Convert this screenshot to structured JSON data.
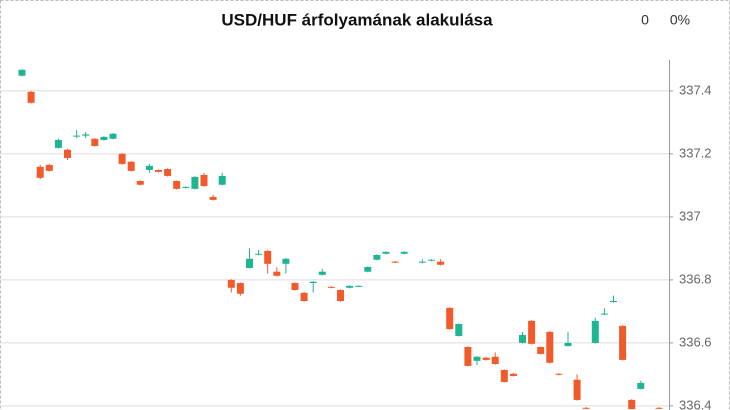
{
  "chart_data": {
    "type": "candlestick",
    "title": "USD/HUF árfolyamának alakulása",
    "change": "0",
    "change_pct": "0%",
    "up_color": "#1db592",
    "down_color": "#f15a2b",
    "grid": true,
    "ylim": [
      336.387,
      337.498
    ],
    "yticks": [
      336.4,
      336.6,
      336.8,
      337.0,
      337.2,
      337.4
    ],
    "open": [
      337.448,
      337.397,
      337.159,
      337.165,
      337.219,
      337.213,
      337.255,
      337.258,
      337.248,
      337.244,
      337.248,
      337.2,
      337.175,
      337.114,
      337.149,
      337.149,
      337.152,
      337.114,
      337.092,
      337.089,
      337.133,
      337.063,
      337.102,
      336.8,
      336.79,
      336.838,
      336.88,
      336.892,
      336.826,
      336.851,
      336.79,
      336.759,
      336.79,
      336.816,
      336.778,
      336.768,
      336.775,
      336.779,
      336.826,
      336.864,
      336.883,
      336.858,
      336.883,
      null,
      336.855,
      336.861,
      336.858,
      336.711,
      336.622,
      336.587,
      336.543,
      336.553,
      336.556,
      336.514,
      336.502,
      336.6,
      336.67,
      336.587,
      336.635,
      336.502,
      336.59,
      336.483,
      336.394,
      336.6,
      336.69,
      336.73,
      336.654,
      336.419,
      336.454,
      null,
      336.394
    ],
    "high": [
      337.468,
      337.4,
      337.165,
      337.168,
      337.248,
      337.216,
      337.276,
      337.27,
      337.25,
      337.256,
      337.266,
      337.202,
      337.177,
      337.116,
      337.168,
      337.151,
      337.154,
      337.116,
      337.097,
      337.129,
      337.14,
      337.07,
      337.14,
      336.802,
      336.792,
      336.9,
      336.895,
      336.895,
      336.84,
      336.87,
      336.792,
      336.761,
      336.796,
      336.835,
      336.78,
      336.77,
      336.783,
      336.783,
      336.843,
      336.881,
      336.891,
      336.86,
      336.891,
      null,
      336.865,
      336.866,
      336.866,
      336.713,
      336.662,
      336.589,
      336.558,
      336.555,
      336.57,
      336.516,
      336.504,
      336.635,
      336.672,
      336.589,
      336.637,
      336.504,
      336.635,
      336.5,
      336.396,
      336.68,
      336.71,
      336.75,
      336.656,
      336.421,
      336.48,
      null,
      336.396
    ],
    "low": [
      337.446,
      337.36,
      337.12,
      337.144,
      337.217,
      337.18,
      337.25,
      337.25,
      337.223,
      337.242,
      337.246,
      337.166,
      337.144,
      337.1,
      337.14,
      337.141,
      337.128,
      337.087,
      337.09,
      337.087,
      337.096,
      337.052,
      337.1,
      336.76,
      336.75,
      336.836,
      336.878,
      336.82,
      336.811,
      336.82,
      336.766,
      336.731,
      336.76,
      336.814,
      336.773,
      336.731,
      336.773,
      336.777,
      336.824,
      336.862,
      336.881,
      336.853,
      336.881,
      null,
      336.853,
      336.859,
      336.846,
      336.642,
      336.62,
      336.525,
      336.53,
      336.544,
      336.531,
      336.474,
      336.493,
      336.598,
      336.595,
      336.563,
      336.535,
      336.497,
      336.588,
      336.417,
      336.39,
      336.598,
      336.688,
      336.728,
      336.544,
      336.39,
      336.452,
      null,
      336.39
    ],
    "close": [
      337.467,
      337.362,
      337.124,
      337.146,
      337.244,
      337.187,
      337.258,
      337.262,
      337.225,
      337.254,
      337.264,
      337.168,
      337.146,
      337.102,
      337.162,
      337.143,
      337.13,
      337.089,
      337.095,
      337.127,
      337.098,
      337.054,
      337.13,
      336.775,
      336.756,
      336.867,
      336.883,
      336.851,
      336.813,
      336.867,
      336.768,
      336.733,
      336.794,
      336.826,
      336.775,
      336.733,
      336.781,
      336.781,
      336.841,
      336.879,
      336.889,
      336.855,
      336.889,
      null,
      336.858,
      336.864,
      336.848,
      336.644,
      336.66,
      336.527,
      336.556,
      336.546,
      336.533,
      336.476,
      336.495,
      336.625,
      336.597,
      336.565,
      336.537,
      336.499,
      336.6,
      336.419,
      336.392,
      336.67,
      336.693,
      336.733,
      336.546,
      336.39,
      336.473,
      null,
      336.392
    ]
  }
}
